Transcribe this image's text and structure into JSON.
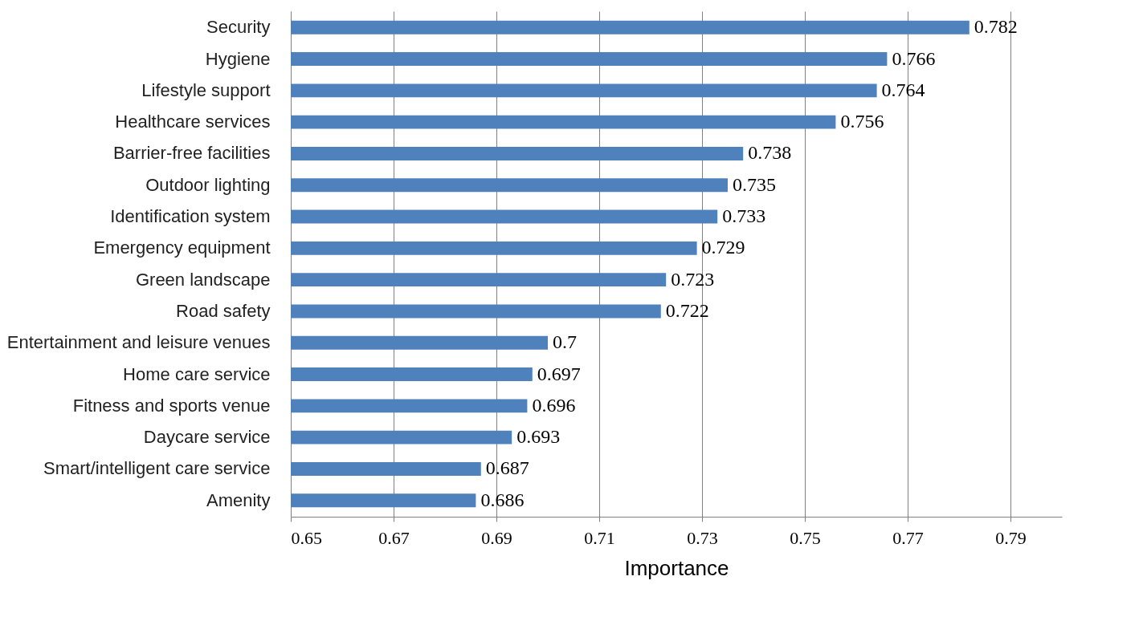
{
  "chart_data": {
    "type": "bar",
    "orientation": "horizontal",
    "xlabel": "Importance",
    "categories": [
      "Security",
      "Hygiene",
      "Lifestyle support",
      "Healthcare services",
      "Barrier-free facilities",
      "Outdoor lighting",
      "Identification system",
      "Emergency equipment",
      "Green landscape",
      "Road safety",
      "Entertainment and leisure venues",
      "Home care service",
      "Fitness and sports venue",
      "Daycare service",
      "Smart/intelligent care service",
      "Amenity"
    ],
    "values": [
      0.782,
      0.766,
      0.764,
      0.756,
      0.738,
      0.735,
      0.733,
      0.729,
      0.723,
      0.722,
      0.7,
      0.697,
      0.696,
      0.693,
      0.687,
      0.686
    ],
    "color": "#4f81bd",
    "xlim": [
      0.65,
      0.8
    ],
    "xticks": [
      0.65,
      0.67,
      0.69,
      0.71,
      0.73,
      0.75,
      0.77,
      0.79
    ],
    "grid": "x",
    "data_labels": true
  }
}
